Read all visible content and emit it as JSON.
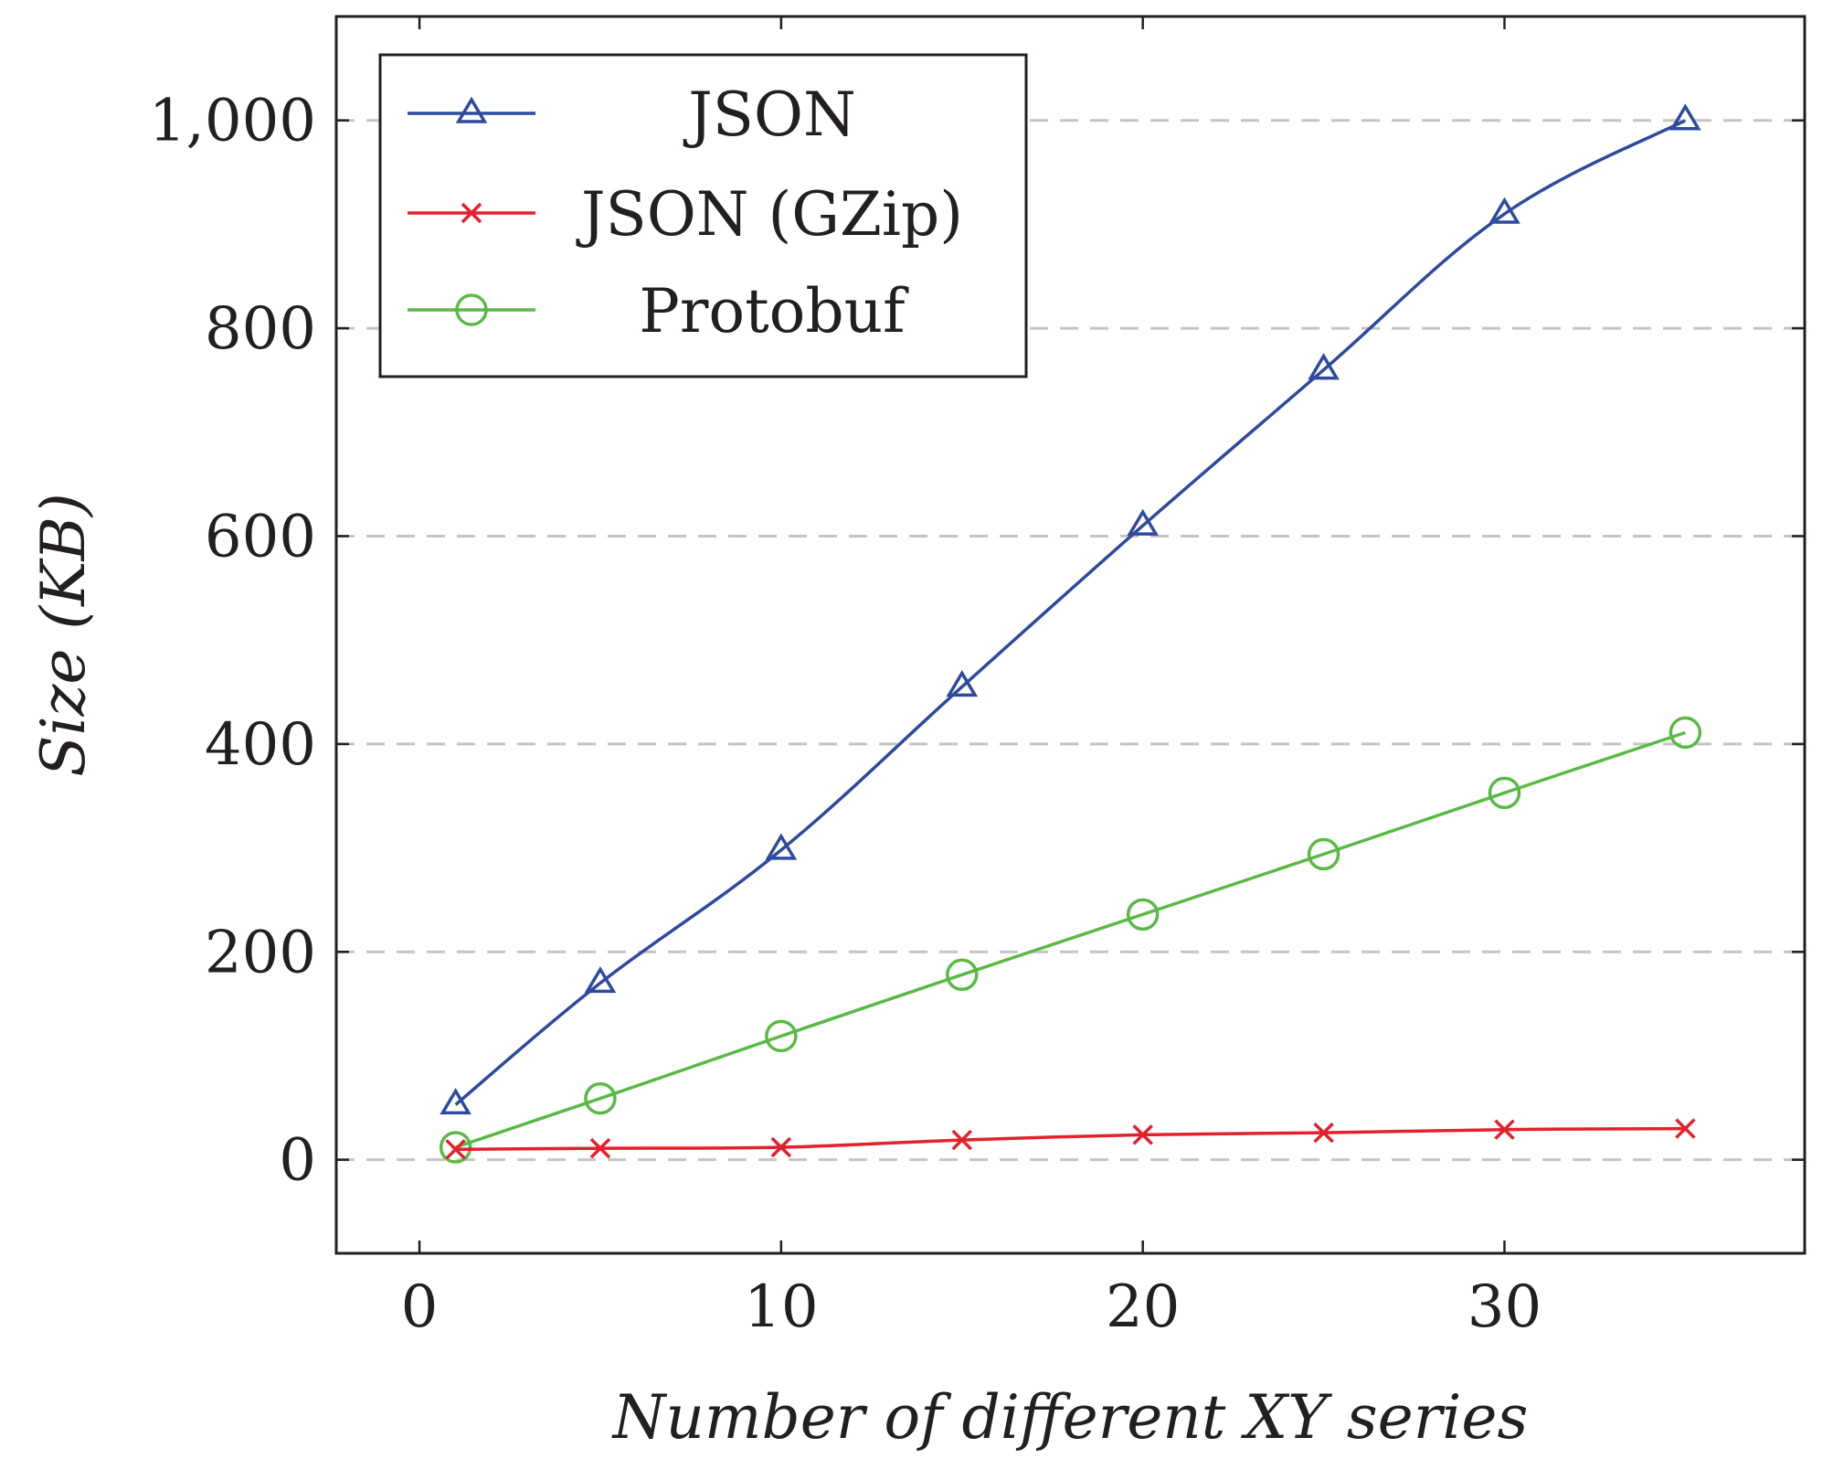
{
  "chart_data": {
    "type": "line",
    "title": "",
    "xlabel": "Number of different XY series",
    "ylabel": "Size (KB)",
    "xlim": [
      -2.3,
      38.3
    ],
    "ylim": [
      -90,
      1100
    ],
    "xticks": [
      0,
      10,
      20,
      30
    ],
    "xtick_labels": [
      "0",
      "10",
      "20",
      "30"
    ],
    "yticks": [
      0,
      200,
      400,
      600,
      800,
      1000
    ],
    "ytick_labels": [
      "0",
      "200",
      "400",
      "600",
      "800",
      "1,000"
    ],
    "grid": "horizontal dashed",
    "legend_position": "top-left",
    "x": [
      1,
      5,
      10,
      15,
      20,
      25,
      30,
      35
    ],
    "series": [
      {
        "name": "JSON",
        "color": "#2e4a9e",
        "marker": "triangle",
        "values": [
          53,
          170,
          298,
          455,
          610,
          760,
          910,
          1000
        ]
      },
      {
        "name": "JSON (GZip)",
        "color": "#e3202b",
        "marker": "cross",
        "values": [
          10,
          11,
          12,
          19,
          24,
          26,
          29,
          30
        ]
      },
      {
        "name": "Protobuf",
        "color": "#5ab946",
        "marker": "circle",
        "values": [
          12,
          59,
          119,
          178,
          236,
          294,
          353,
          411
        ]
      }
    ]
  }
}
